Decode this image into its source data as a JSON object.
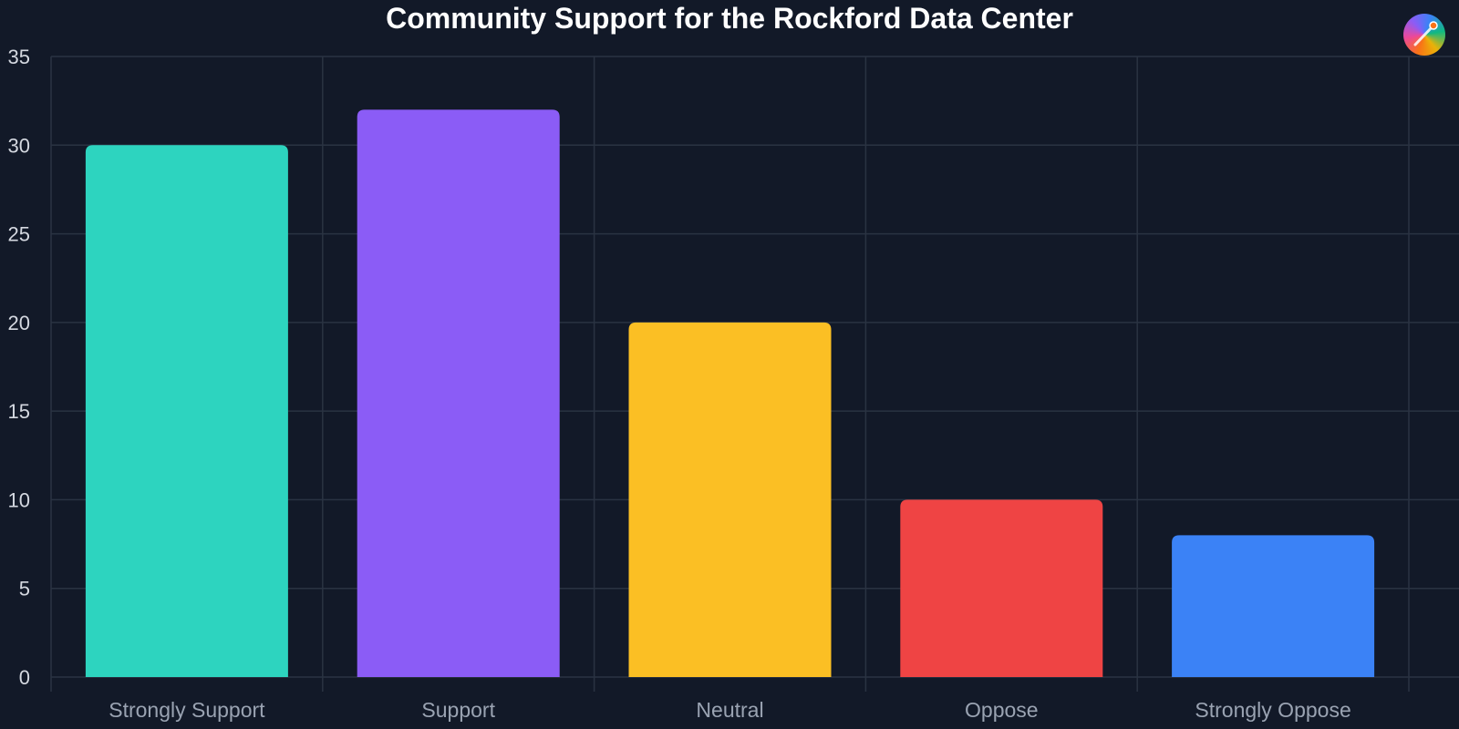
{
  "chart_data": {
    "type": "bar",
    "title": "Community Support for the Rockford Data Center",
    "xlabel": "",
    "ylabel": "",
    "categories": [
      "Strongly Support",
      "Support",
      "Neutral",
      "Oppose",
      "Strongly Oppose"
    ],
    "values": [
      30,
      32,
      20,
      10,
      8
    ],
    "colors": [
      "#2dd4bf",
      "#8b5cf6",
      "#fbbf24",
      "#ef4444",
      "#3b82f6"
    ],
    "ylim": [
      0,
      35
    ],
    "yticks": [
      0,
      5,
      10,
      15,
      20,
      25,
      30,
      35
    ],
    "grid": true,
    "legend": "none",
    "background": "#121928",
    "grid_color": "#2a3342"
  },
  "logo": {
    "icon": "color-wheel-pencil-icon"
  }
}
